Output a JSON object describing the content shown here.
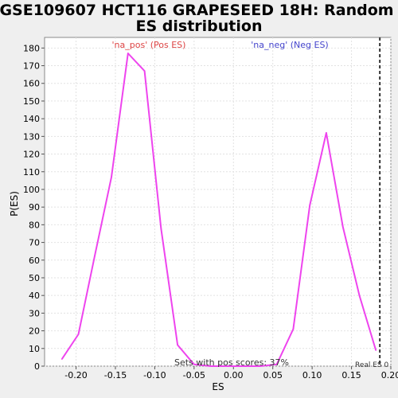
{
  "chart_data": {
    "type": "line",
    "title_line1": "GSE109607 HCT116 GRAPESEED 18H: Random",
    "title_line2": "ES distribution",
    "xlabel": "ES",
    "ylabel": "P(ES)",
    "xlim": [
      -0.24,
      0.2
    ],
    "ylim": [
      0,
      186
    ],
    "x_ticks": [
      -0.2,
      -0.15,
      -0.1,
      -0.05,
      0.0,
      0.05,
      0.1,
      0.15,
      0.2
    ],
    "x_tick_labels": [
      "-0.20",
      "-0.15",
      "-0.10",
      "-0.05",
      "0.00",
      "0.05",
      "0.10",
      "0.15",
      "0.20"
    ],
    "y_ticks": [
      0,
      10,
      20,
      30,
      40,
      50,
      60,
      70,
      80,
      90,
      100,
      110,
      120,
      130,
      140,
      150,
      160,
      170,
      180
    ],
    "y_tick_labels": [
      "0",
      "10",
      "20",
      "30",
      "40",
      "50",
      "60",
      "70",
      "80",
      "90",
      "100",
      "110",
      "120",
      "130",
      "140",
      "150",
      "160",
      "170",
      "180"
    ],
    "grid": true,
    "series": [
      {
        "color": "#ee44ee",
        "x": [
          -0.218,
          -0.197,
          -0.176,
          -0.155,
          -0.134,
          -0.113,
          -0.092,
          -0.071,
          -0.05,
          -0.029,
          -0.008,
          0.013,
          0.034,
          0.055,
          0.076,
          0.097,
          0.118,
          0.139,
          0.16,
          0.181
        ],
        "y": [
          4,
          18,
          63,
          107,
          177,
          167,
          78,
          12,
          1,
          0,
          0,
          0,
          0,
          1,
          21,
          91,
          132,
          79,
          40,
          9
        ]
      }
    ],
    "annotations": {
      "pos_label": "'na_pos' (Pos ES)",
      "pos_color": "#dd4444",
      "neg_label": "'na_neg' (Neg ES)",
      "neg_color": "#4444cc",
      "pos_scores": "Sets with pos scores: 37%",
      "real_es_label": "Real ES 0",
      "real_es_x": 0.186
    }
  }
}
